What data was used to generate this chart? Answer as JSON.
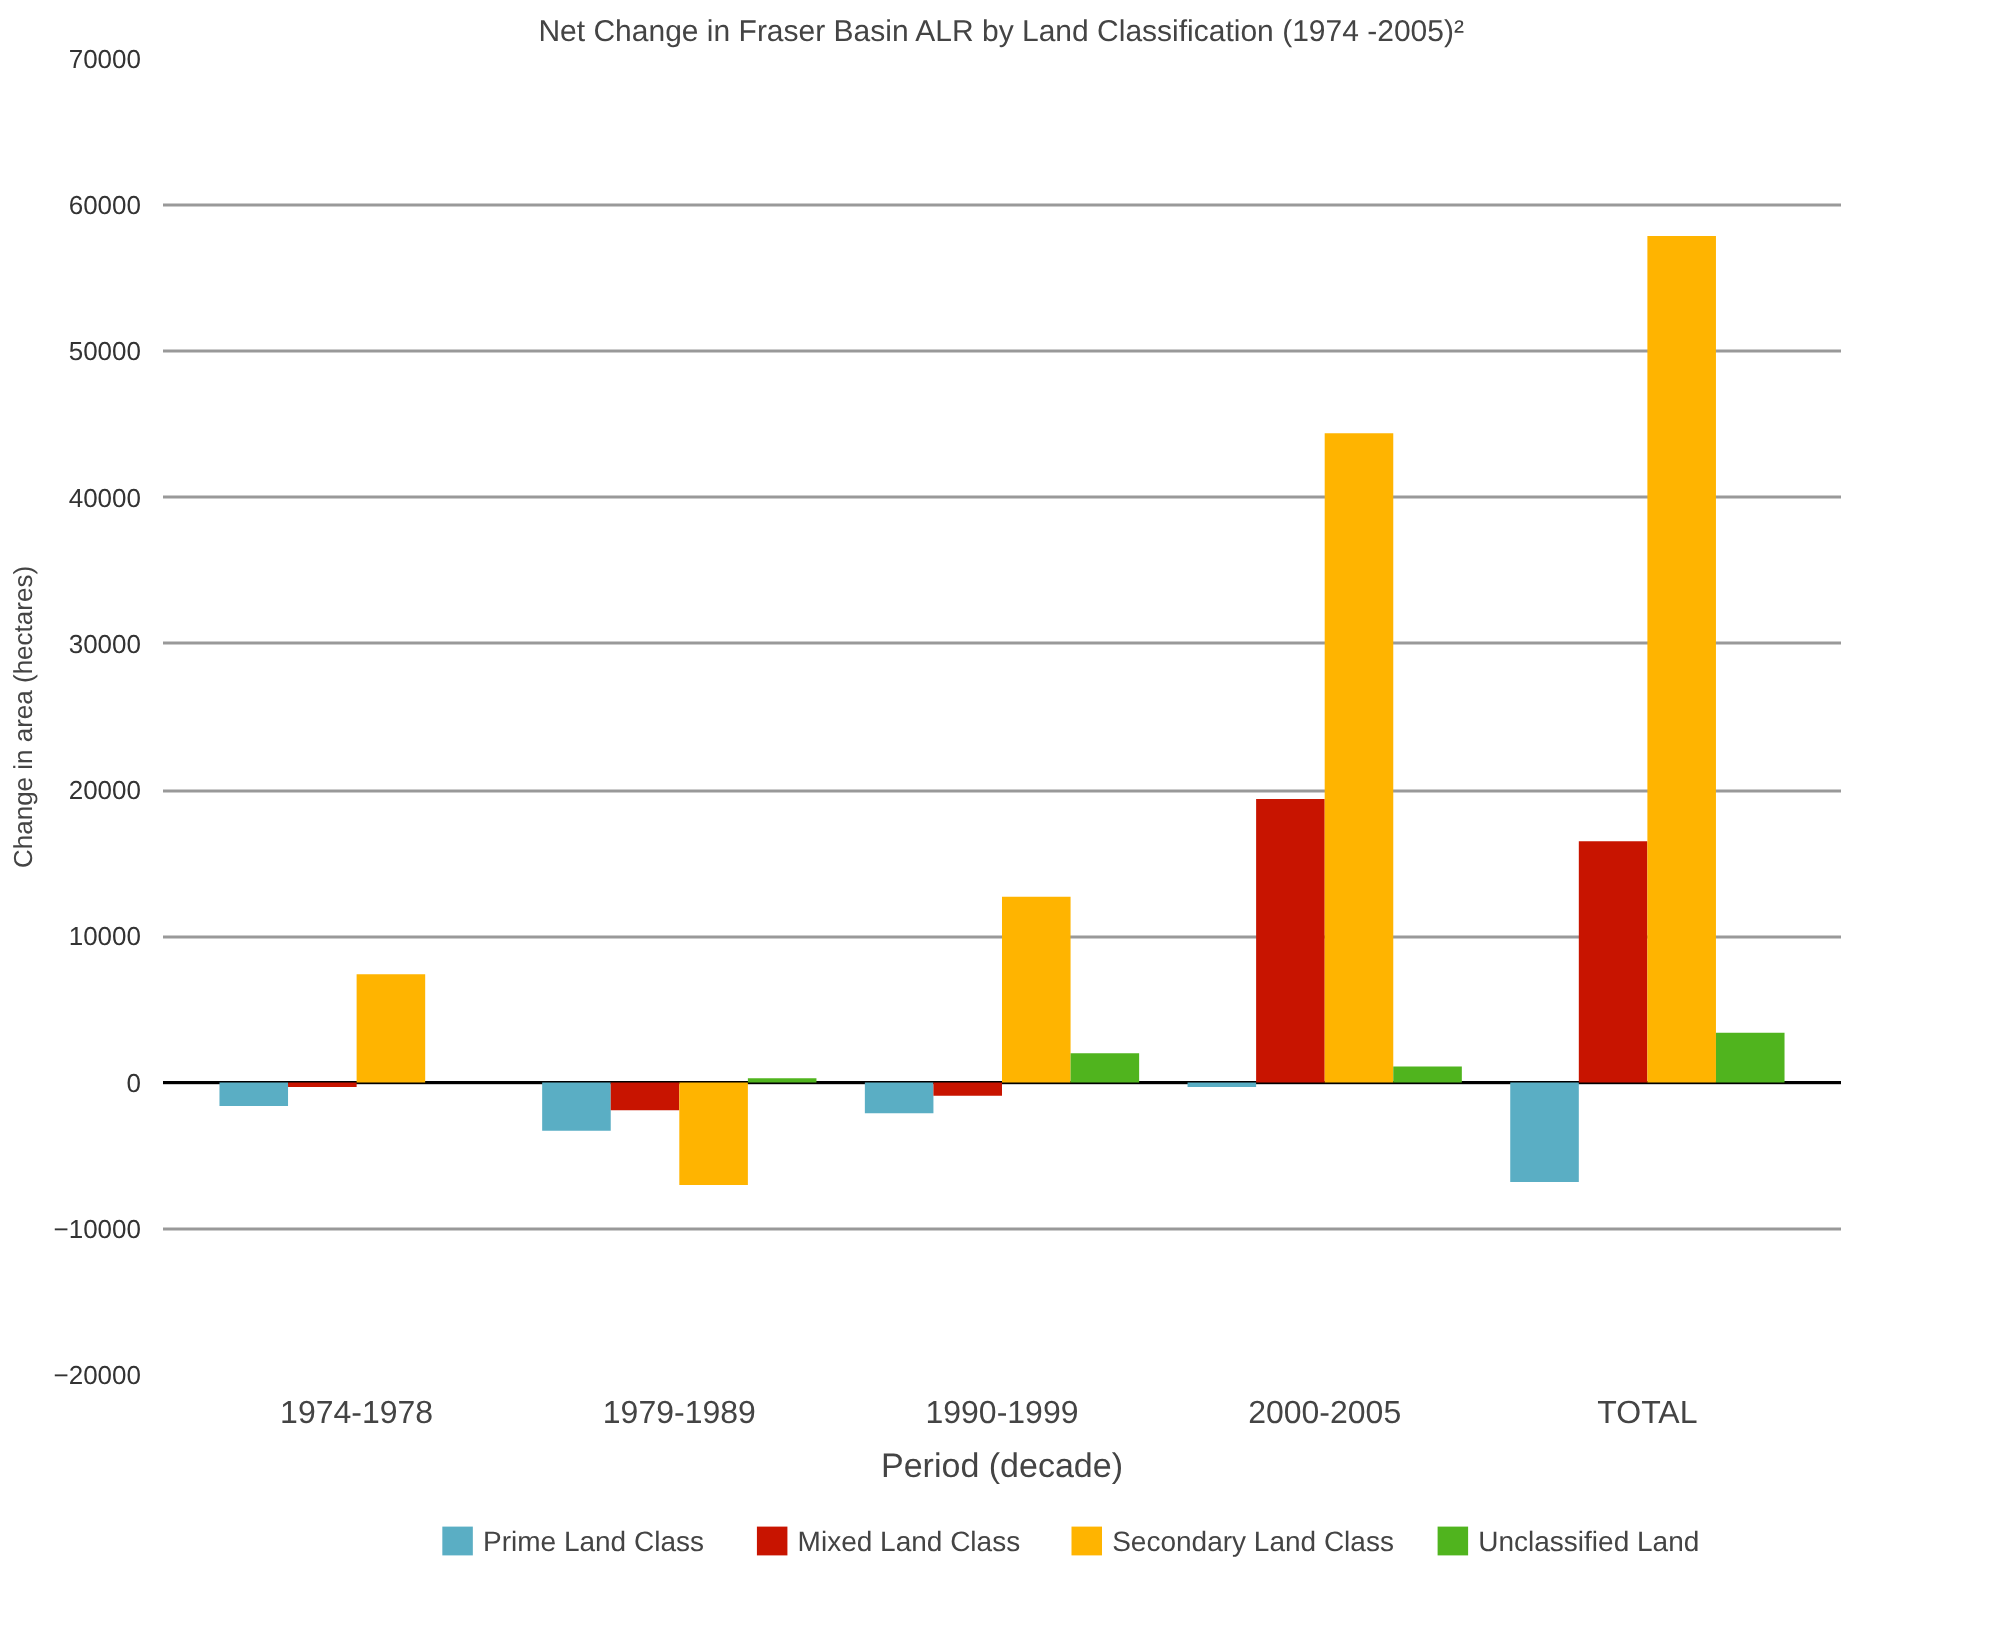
{
  "chart_data": {
    "type": "bar",
    "title": "Net Change in Fraser Basin ALR by Land Classification (1974 -2005)²",
    "xlabel": "Period (decade)",
    "ylabel": "Change in area (hectares)",
    "categories": [
      "1974-1978",
      "1979-1989",
      "1990-1999",
      "2000-2005",
      "TOTAL"
    ],
    "series": [
      {
        "name": "Prime Land Class",
        "color": "#5aaec4",
        "values": [
          -1600,
          -3300,
          -2100,
          -300,
          -6800
        ]
      },
      {
        "name": "Mixed Land Class",
        "color": "#c81400",
        "values": [
          -300,
          -1900,
          -900,
          19400,
          16500
        ]
      },
      {
        "name": "Secondary Land Class",
        "color": "#ffb400",
        "values": [
          7400,
          -7000,
          12700,
          44400,
          57900
        ]
      },
      {
        "name": "Unclassified Land",
        "color": "#50b41e",
        "values": [
          0,
          300,
          2000,
          1100,
          3400
        ]
      }
    ],
    "ylim": [
      -20000,
      70000
    ],
    "yticks": [
      -20000,
      -10000,
      0,
      10000,
      20000,
      30000,
      40000,
      50000,
      60000,
      70000
    ],
    "grid": "y",
    "legend": "bottom"
  }
}
